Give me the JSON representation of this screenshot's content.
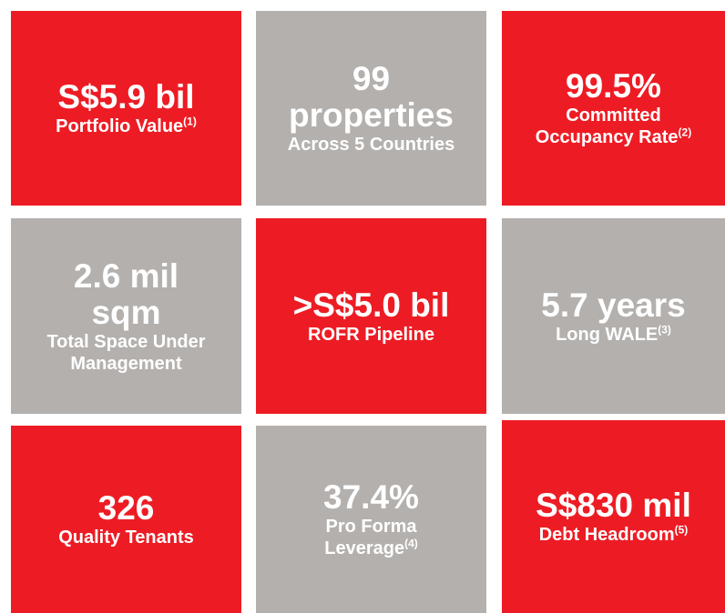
{
  "tiles": [
    {
      "value": [
        "S$5.9 bil"
      ],
      "label": [
        "Portfolio Value"
      ],
      "note": "(1)"
    },
    {
      "value": [
        "99",
        "properties"
      ],
      "label": [
        "Across 5 Countries"
      ]
    },
    {
      "value": [
        "99.5%"
      ],
      "label": [
        "Committed",
        "Occupancy Rate"
      ],
      "note": "(2)"
    },
    {
      "value": [
        "2.6 mil",
        "sqm"
      ],
      "label": [
        "Total Space Under",
        "Management"
      ]
    },
    {
      "value": [
        ">S$5.0 bil"
      ],
      "label": [
        "ROFR Pipeline"
      ]
    },
    {
      "value": [
        "5.7 years"
      ],
      "label": [
        "Long WALE"
      ],
      "note": "(3)"
    },
    {
      "value": [
        "326"
      ],
      "label": [
        "Quality Tenants"
      ]
    },
    {
      "value": [
        "37.4%"
      ],
      "label": [
        "Pro Forma",
        "Leverage"
      ],
      "note": "(4)"
    },
    {
      "value": [
        "S$830 mil"
      ],
      "label": [
        "Debt Headroom"
      ],
      "note": "(5)"
    }
  ]
}
